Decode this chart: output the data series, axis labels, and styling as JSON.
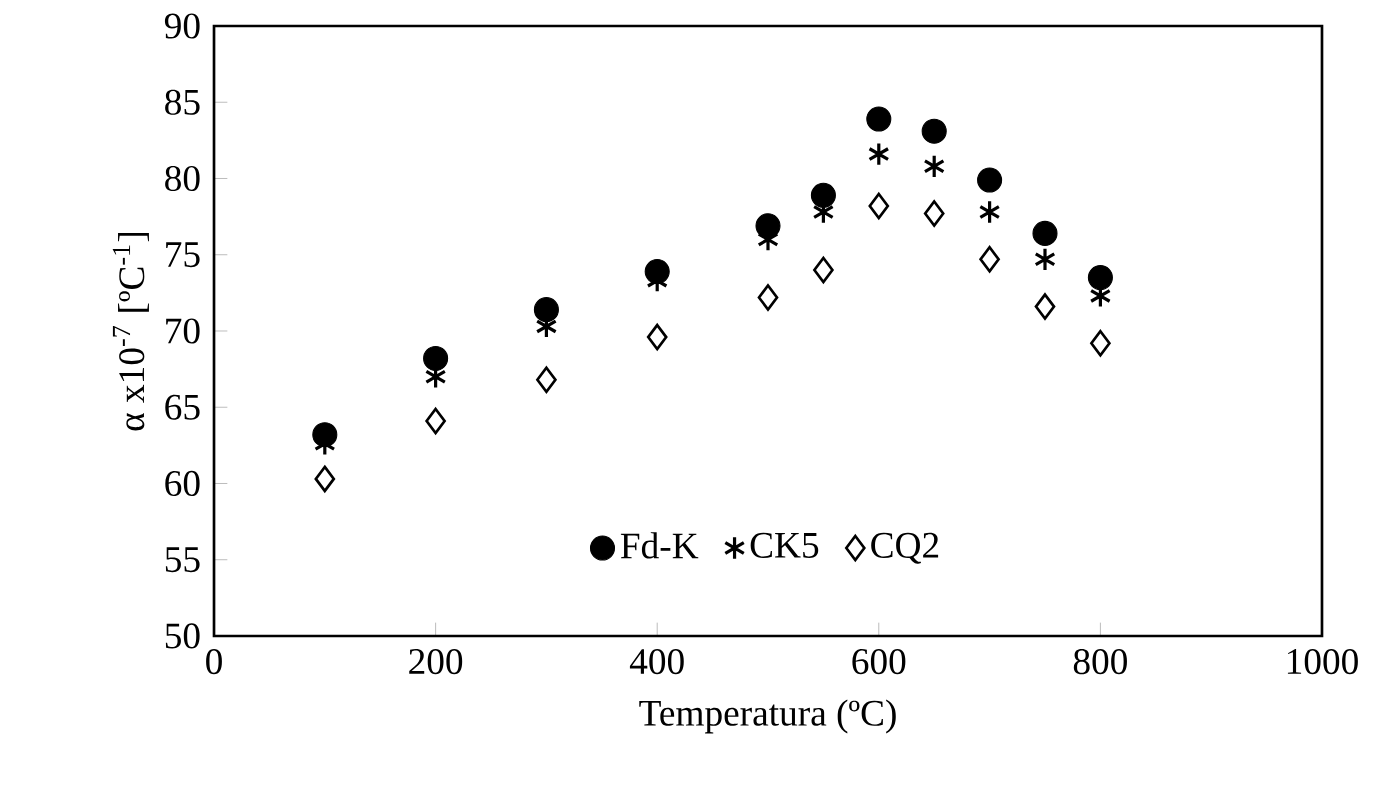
{
  "chart_data": {
    "type": "scatter",
    "xlabel": "Temperatura (ºC)",
    "ylabel": "α x10$^{-7}$ [ºC$^{-1}$]",
    "x": [
      100,
      200,
      300,
      400,
      500,
      550,
      600,
      650,
      700,
      750,
      800
    ],
    "series": [
      {
        "name": "Fd-K",
        "color": "#000000",
        "marker": "circle",
        "values": [
          63.2,
          68.2,
          71.4,
          73.9,
          76.9,
          78.9,
          83.9,
          83.1,
          79.9,
          76.4,
          73.5
        ]
      },
      {
        "name": "CK5",
        "color": "#000000",
        "marker": "cross",
        "values": [
          62.6,
          67.0,
          70.3,
          73.3,
          76.0,
          77.8,
          81.6,
          80.8,
          77.8,
          74.7,
          72.3
        ]
      },
      {
        "name": "CQ2",
        "color": "#000000",
        "marker": "diamond",
        "values": [
          60.3,
          64.1,
          66.8,
          69.6,
          72.2,
          74.0,
          78.2,
          77.7,
          74.7,
          71.6,
          69.2
        ]
      }
    ],
    "xlim": [
      0,
      1000
    ],
    "xticks": [
      0,
      200,
      400,
      600,
      800,
      1000
    ],
    "ylim": [
      50,
      90
    ],
    "yticks": [
      50,
      55,
      60,
      65,
      70,
      75,
      80,
      85,
      90
    ],
    "grid": false,
    "legend": "bottom"
  }
}
